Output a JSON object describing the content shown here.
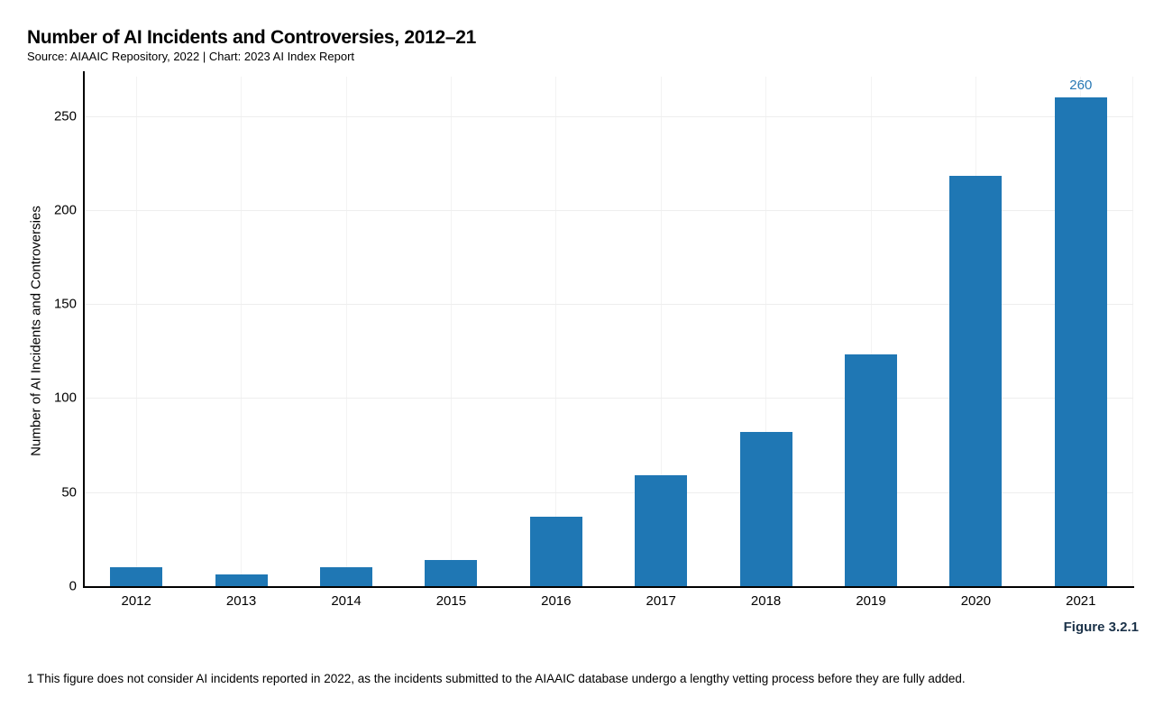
{
  "page": {
    "title": "Number of AI Incidents and Controversies, 2012–21",
    "subtitle": "Source: AIAAIC Repository, 2022 | Chart: 2023 AI Index Report",
    "figure_label": "Figure 3.2.1",
    "footnote": "1 This figure does not consider AI incidents reported in 2022, as the incidents submitted to the AIAAIC database undergo a lengthy vetting process before they are fully added."
  },
  "chart_data": {
    "type": "bar",
    "title": "Number of AI Incidents and Controversies, 2012–21",
    "subtitle": "Source: AIAAIC Repository, 2022 | Chart: 2023 AI Index Report",
    "categories": [
      "2012",
      "2013",
      "2014",
      "2015",
      "2016",
      "2017",
      "2018",
      "2019",
      "2020",
      "2021"
    ],
    "values": [
      10,
      6,
      10,
      14,
      37,
      59,
      82,
      123,
      218,
      260
    ],
    "xlabel": "",
    "ylabel": "Number of AI Incidents and Controversies",
    "yticks": [
      0,
      50,
      100,
      150,
      200,
      250
    ],
    "ylim": [
      0,
      271
    ],
    "grid": "horizontal and vertical, very light gray",
    "legend": "none",
    "value_labels": [
      {
        "category": "2021",
        "text": "260"
      }
    ]
  },
  "colors": {
    "bar": "#1f77b4",
    "value_label": "#2878b4",
    "figure_label": "#1b3249",
    "axis": "#000000",
    "gridline_h": "#eeeeee",
    "gridline_v": "#f3f3f3",
    "background": "#ffffff",
    "text": "#000000"
  }
}
